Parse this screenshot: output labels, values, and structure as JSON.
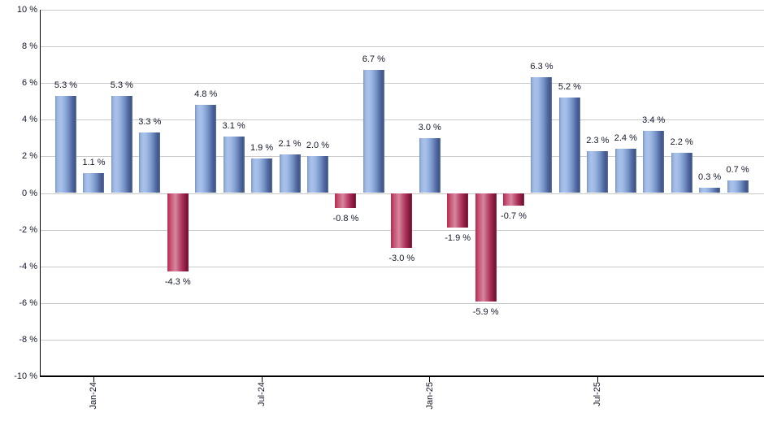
{
  "chart_data": {
    "type": "bar",
    "title": "",
    "unit": "%",
    "grid": true,
    "legend": null,
    "y_axis": {
      "min": -10,
      "max": 10,
      "step": 2,
      "labels": [
        "10 %",
        "8 %",
        "6 %",
        "4 %",
        "2 %",
        "0 %",
        "-2 %",
        "-4 %",
        "-6 %",
        "-8 %",
        "-10 %"
      ]
    },
    "x_axis": {
      "tick_labels": [
        "Jan-24",
        "Jul-24",
        "Jan-25",
        "Jul-25"
      ],
      "tick_bar_indices": [
        1,
        7,
        13,
        19
      ]
    },
    "values": [
      5.3,
      1.1,
      5.3,
      3.3,
      -4.3,
      4.8,
      3.1,
      1.9,
      2.1,
      2.0,
      -0.8,
      6.7,
      -3.0,
      3.0,
      -1.9,
      -5.9,
      -0.7,
      6.3,
      5.2,
      2.3,
      2.4,
      3.4,
      2.2,
      0.3,
      0.7
    ],
    "data_labels": [
      "5.3 %",
      "1.1 %",
      "5.3 %",
      "3.3 %",
      "-4.3 %",
      "4.8 %",
      "3.1 %",
      "1.9 %",
      "2.1 %",
      "2.0 %",
      "-0.8 %",
      "6.7 %",
      "-3.0 %",
      "3.0 %",
      "-1.9 %",
      "-5.9 %",
      "-0.7 %",
      "6.3 %",
      "5.2 %",
      "2.3 %",
      "2.4 %",
      "3.4 %",
      "2.2 %",
      "0.3 %",
      "0.7 %"
    ],
    "colors": {
      "positive_bar": "#a0bae6",
      "negative_bar": "#c45e7e",
      "gridline": "#c9c9c9",
      "axis": "#000000",
      "label_text": "#13182b"
    }
  }
}
